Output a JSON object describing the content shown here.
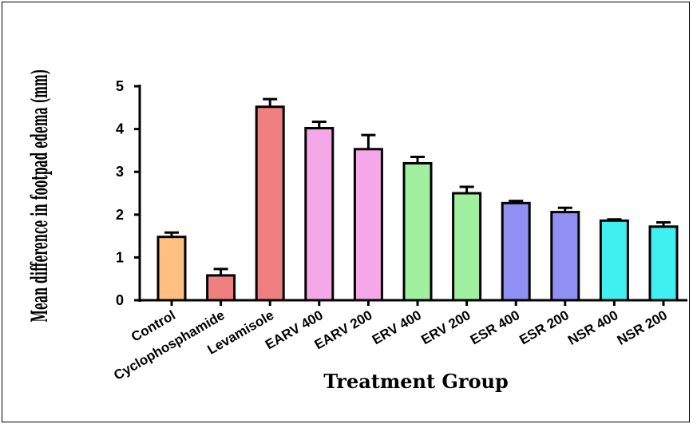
{
  "chart_data": {
    "type": "bar",
    "xlabel": "Treatment Group",
    "ylabel": "Mean difference in footpad edema (mm)",
    "ylim": [
      0,
      5
    ],
    "yticks": [
      0,
      1,
      2,
      3,
      4,
      5
    ],
    "grid": false,
    "categories": [
      "Control",
      "Cyclophosphamide",
      "Levamisole",
      "EARV 400",
      "EARV 200",
      "ERV 400",
      "ERV 200",
      "ESR 400",
      "ESR 200",
      "NSR 400",
      "NSR 200"
    ],
    "values": [
      1.48,
      0.58,
      4.52,
      4.02,
      3.53,
      3.2,
      2.5,
      2.27,
      2.06,
      1.86,
      1.72
    ],
    "errors": [
      0.1,
      0.15,
      0.18,
      0.15,
      0.33,
      0.15,
      0.15,
      0.05,
      0.1,
      0.03,
      0.1
    ],
    "colors": [
      "#ffbf80",
      "#f08080",
      "#f08080",
      "#f4a8e8",
      "#f4a8e8",
      "#a0f0a0",
      "#a0f0a0",
      "#9090f4",
      "#9090f4",
      "#40f0f0",
      "#40f0f0"
    ]
  }
}
